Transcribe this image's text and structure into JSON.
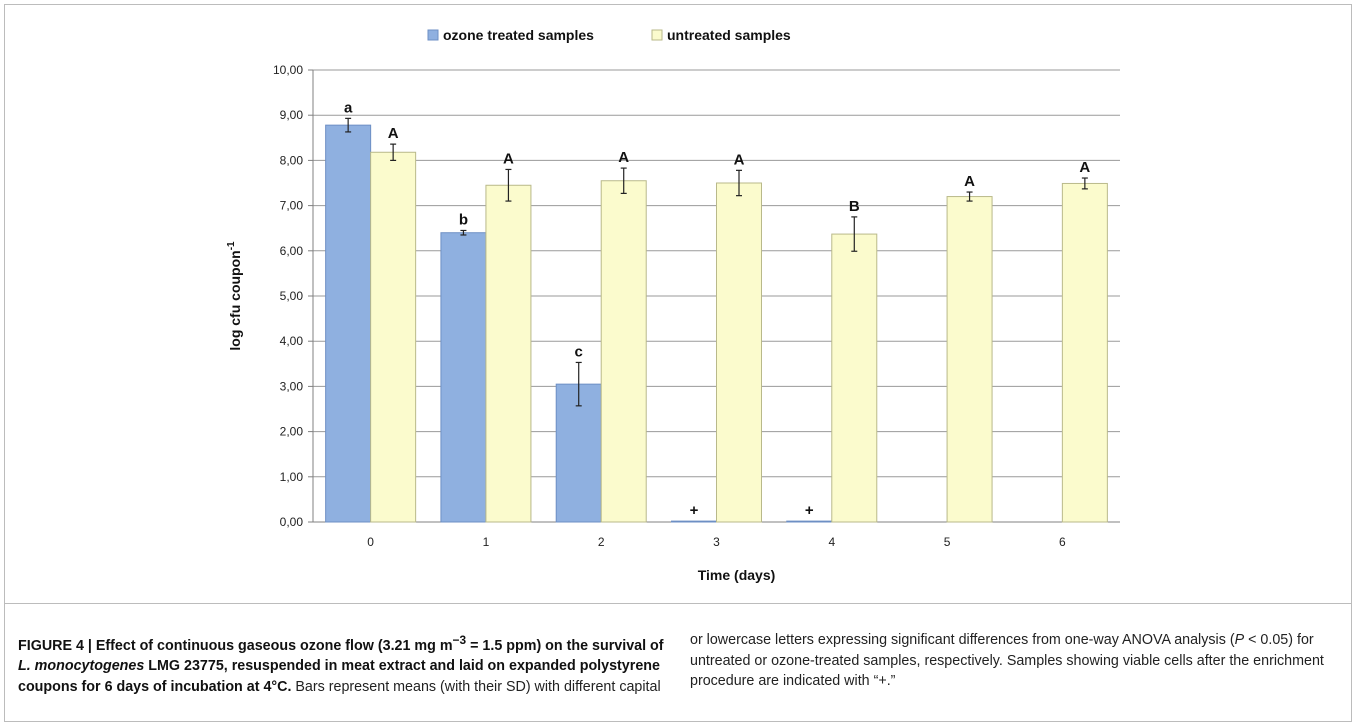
{
  "chart_data": {
    "type": "bar",
    "categories": [
      "0",
      "1",
      "2",
      "3",
      "4",
      "5",
      "6"
    ],
    "series": [
      {
        "name": "ozone treated samples",
        "color": "#8fb0e0",
        "values": [
          8.78,
          6.4,
          3.05,
          0.02,
          0.02,
          null,
          null
        ],
        "errors": [
          0.15,
          0.05,
          0.48,
          0,
          0,
          null,
          null
        ],
        "labels": [
          "a",
          "b",
          "c",
          "+",
          "+",
          "",
          ""
        ]
      },
      {
        "name": "untreated samples",
        "color": "#fbfbcd",
        "values": [
          8.18,
          7.45,
          7.55,
          7.5,
          6.37,
          7.2,
          7.49
        ],
        "errors": [
          0.18,
          0.35,
          0.28,
          0.28,
          0.38,
          0.1,
          0.12
        ],
        "labels": [
          "A",
          "A",
          "A",
          "A",
          "B",
          "A",
          "A"
        ]
      }
    ],
    "xlabel": "Time (days)",
    "ylabel": "log cfu coupon",
    "ylabel_sup": "-1",
    "ylim": [
      0,
      10
    ],
    "yticks": [
      "0,00",
      "1,00",
      "2,00",
      "3,00",
      "4,00",
      "5,00",
      "6,00",
      "7,00",
      "8,00",
      "9,00",
      "10,00"
    ],
    "grid": true,
    "legend_position": "top"
  },
  "caption": {
    "bold_a": "FIGURE 4 | Effect of continuous gaseous ozone flow (3.21 mg m",
    "sup1": "−3",
    "bold_b": " = 1.5 ppm) on the survival of ",
    "bold_italic": "L. monocytogenes",
    "bold_c": " LMG 23775, resuspended in meat extract and laid on expanded polystyrene coupons for 6 days of incubation at 4°C.",
    "text_a": " Bars represent means (with their SD) with different capital or lowercase letters expressing significant differences from one-way ANOVA analysis (",
    "italic_p": "P",
    "text_b": " < 0.05) for untreated or ozone-treated samples, respectively. Samples showing viable cells after the enrichment procedure are indicated with “+.”"
  }
}
